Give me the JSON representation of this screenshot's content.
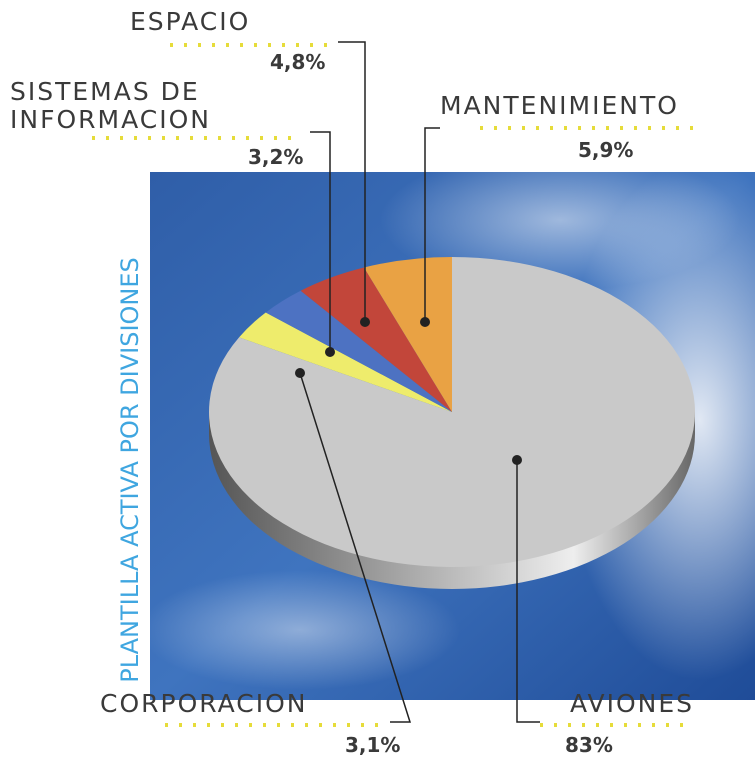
{
  "chart_data": {
    "type": "pie",
    "title": "PLANTILLA ACTIVA POR DIVISIONES",
    "categories": [
      "AVIONES",
      "CORPORACION",
      "SISTEMAS DE INFORMACION",
      "ESPACIO",
      "MANTENIMIENTO"
    ],
    "values": [
      83,
      3.1,
      3.2,
      4.8,
      5.9
    ],
    "value_labels": [
      "83%",
      "3,1%",
      "3,2%",
      "4,8%",
      "5,9%"
    ],
    "colors": [
      "#c9c9c9",
      "#eeec6c",
      "#4d72c2",
      "#c2463a",
      "#e9a244"
    ]
  }
}
